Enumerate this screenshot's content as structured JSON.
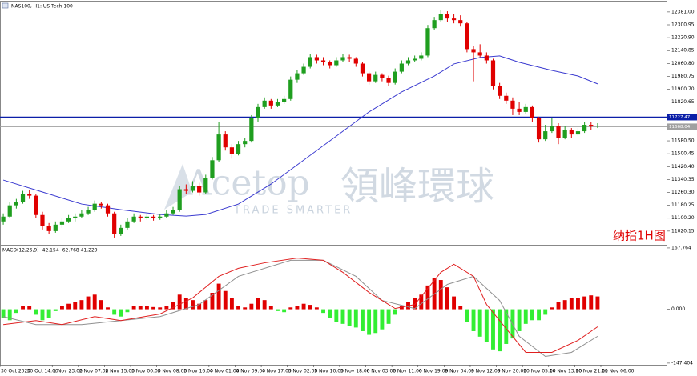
{
  "chart_data": [
    {
      "type": "candlestick",
      "title": "NAS100, H1: US Tech 100",
      "annotations": [
        "Acetop",
        "領峰環球",
        "TRADE SMARTER",
        "纳指1H图"
      ],
      "up_color": "#1f9e1f",
      "down_color": "#e00000",
      "ylim": [
        10935,
        12445
      ],
      "yticks": [
        {
          "value": 12381,
          "label": "12381.00"
        },
        {
          "value": 12300.95,
          "label": "12300.95"
        },
        {
          "value": 12220.9,
          "label": "12220.90"
        },
        {
          "value": 12140.85,
          "label": "12140.85"
        },
        {
          "value": 12060.8,
          "label": "12060.80"
        },
        {
          "value": 11980.75,
          "label": "11980.75"
        },
        {
          "value": 11900.7,
          "label": "11900.70"
        },
        {
          "value": 11820.65,
          "label": "11820.65"
        },
        {
          "value": 11580.5,
          "label": "11580.50"
        },
        {
          "value": 11500.45,
          "label": "11500.45"
        },
        {
          "value": 11420.4,
          "label": "11420.40"
        },
        {
          "value": 11340.35,
          "label": "11340.35"
        },
        {
          "value": 11260.3,
          "label": "11260.30"
        },
        {
          "value": 11180.25,
          "label": "11180.25"
        },
        {
          "value": 11100.2,
          "label": "11100.20"
        },
        {
          "value": 11020.15,
          "label": "11020.15"
        }
      ],
      "xticks": [
        {
          "value": 0,
          "label": "30 Oct 2020"
        },
        {
          "value": 4,
          "label": "30 Oct 14:00"
        },
        {
          "value": 8,
          "label": "1 Nov 23:00"
        },
        {
          "value": 12,
          "label": "2 Nov 07:00"
        },
        {
          "value": 16,
          "label": "2 Nov 15:00"
        },
        {
          "value": 20,
          "label": "3 Nov 00:00"
        },
        {
          "value": 24,
          "label": "3 Nov 08:00"
        },
        {
          "value": 28,
          "label": "3 Nov 16:00"
        },
        {
          "value": 32,
          "label": "4 Nov 01:00"
        },
        {
          "value": 36,
          "label": "4 Nov 09:00"
        },
        {
          "value": 40,
          "label": "4 Nov 17:00"
        },
        {
          "value": 44,
          "label": "5 Nov 02:00"
        },
        {
          "value": 48,
          "label": "5 Nov 10:00"
        },
        {
          "value": 52,
          "label": "5 Nov 18:00"
        },
        {
          "value": 56,
          "label": "6 Nov 03:00"
        },
        {
          "value": 60,
          "label": "6 Nov 11:00"
        },
        {
          "value": 64,
          "label": "6 Nov 19:00"
        },
        {
          "value": 68,
          "label": "9 Nov 04:00"
        },
        {
          "value": 72,
          "label": "9 Nov 12:00"
        },
        {
          "value": 76,
          "label": "9 Nov 20:00"
        },
        {
          "value": 80,
          "label": "10 Nov 05:00"
        },
        {
          "value": 84,
          "label": "10 Nov 13:00"
        },
        {
          "value": 88,
          "label": "10 Nov 21:00"
        },
        {
          "value": 92,
          "label": "11 Nov 06:00"
        }
      ],
      "hlines": [
        {
          "value": 11727.47,
          "color": "#0b1fa8"
        },
        {
          "value": 11668.04,
          "color": "#a0a0a0"
        }
      ],
      "ma": {
        "color": "#3b3bd0",
        "x": [
          0,
          6,
          12,
          18,
          24,
          28,
          31,
          36,
          41,
          46,
          51,
          56,
          61,
          66,
          69,
          73,
          76,
          79,
          84,
          88,
          91
        ],
        "values": [
          11337,
          11263,
          11188,
          11153,
          11123,
          11113,
          11123,
          11188,
          11312,
          11461,
          11610,
          11760,
          11884,
          11983,
          12058,
          12098,
          12108,
          12068,
          12018,
          11983,
          11934
        ]
      },
      "candles": [
        [
          11080,
          11130,
          11060,
          11110
        ],
        [
          11110,
          11200,
          11100,
          11180
        ],
        [
          11180,
          11220,
          11160,
          11200
        ],
        [
          11200,
          11270,
          11190,
          11250
        ],
        [
          11250,
          11275,
          11220,
          11240
        ],
        [
          11240,
          11250,
          11100,
          11120
        ],
        [
          11120,
          11140,
          11030,
          11050
        ],
        [
          11050,
          11070,
          11000,
          11020
        ],
        [
          11020,
          11080,
          11010,
          11060
        ],
        [
          11060,
          11100,
          11040,
          11080
        ],
        [
          11080,
          11120,
          11070,
          11100
        ],
        [
          11100,
          11130,
          11080,
          11110
        ],
        [
          11110,
          11150,
          11100,
          11130
        ],
        [
          11130,
          11170,
          11120,
          11150
        ],
        [
          11150,
          11210,
          11140,
          11190
        ],
        [
          11190,
          11200,
          11160,
          11180
        ],
        [
          11180,
          11190,
          11110,
          11130
        ],
        [
          11130,
          11140,
          10980,
          11000
        ],
        [
          11000,
          11060,
          10990,
          11040
        ],
        [
          11040,
          11100,
          11030,
          11080
        ],
        [
          11080,
          11130,
          11070,
          11110
        ],
        [
          11110,
          11120,
          11080,
          11100
        ],
        [
          11100,
          11130,
          11090,
          11110
        ],
        [
          11110,
          11120,
          11085,
          11100
        ],
        [
          11100,
          11125,
          11090,
          11110
        ],
        [
          11110,
          11150,
          11100,
          11130
        ],
        [
          11130,
          11170,
          11120,
          11150
        ],
        [
          11150,
          11300,
          11140,
          11280
        ],
        [
          11280,
          11310,
          11250,
          11270
        ],
        [
          11270,
          11330,
          11260,
          11300
        ],
        [
          11300,
          11320,
          11240,
          11260
        ],
        [
          11260,
          11370,
          11250,
          11350
        ],
        [
          11350,
          11480,
          11340,
          11460
        ],
        [
          11460,
          11700,
          11450,
          11620
        ],
        [
          11620,
          11640,
          11520,
          11540
        ],
        [
          11540,
          11560,
          11470,
          11500
        ],
        [
          11500,
          11580,
          11490,
          11560
        ],
        [
          11560,
          11600,
          11540,
          11580
        ],
        [
          11580,
          11740,
          11570,
          11720
        ],
        [
          11720,
          11810,
          11700,
          11790
        ],
        [
          11790,
          11850,
          11780,
          11830
        ],
        [
          11830,
          11840,
          11780,
          11800
        ],
        [
          11800,
          11840,
          11790,
          11820
        ],
        [
          11820,
          11860,
          11810,
          11840
        ],
        [
          11840,
          11980,
          11830,
          11960
        ],
        [
          11960,
          12020,
          11940,
          12000
        ],
        [
          12000,
          12060,
          11990,
          12040
        ],
        [
          12040,
          12120,
          12030,
          12100
        ],
        [
          12100,
          12115,
          12060,
          12080
        ],
        [
          12080,
          12100,
          12050,
          12070
        ],
        [
          12070,
          12080,
          12030,
          12050
        ],
        [
          12050,
          12100,
          12040,
          12080
        ],
        [
          12080,
          12120,
          12070,
          12100
        ],
        [
          12100,
          12115,
          12070,
          12090
        ],
        [
          12090,
          12100,
          12040,
          12060
        ],
        [
          12060,
          12070,
          11980,
          12000
        ],
        [
          12000,
          12010,
          11930,
          11950
        ],
        [
          11950,
          12010,
          11940,
          11990
        ],
        [
          11990,
          12000,
          11950,
          11970
        ],
        [
          11970,
          11985,
          11920,
          11940
        ],
        [
          11940,
          12030,
          11930,
          12010
        ],
        [
          12010,
          12080,
          12000,
          12060
        ],
        [
          12060,
          12100,
          12050,
          12080
        ],
        [
          12080,
          12110,
          12070,
          12090
        ],
        [
          12090,
          12130,
          12080,
          12110
        ],
        [
          12110,
          12300,
          12100,
          12280
        ],
        [
          12280,
          12350,
          12270,
          12330
        ],
        [
          12330,
          12395,
          12320,
          12370
        ],
        [
          12370,
          12385,
          12320,
          12340
        ],
        [
          12340,
          12370,
          12310,
          12330
        ],
        [
          12330,
          12360,
          12290,
          12310
        ],
        [
          12310,
          12320,
          12130,
          12150
        ],
        [
          12150,
          12170,
          11950,
          12130
        ],
        [
          12130,
          12180,
          12100,
          12110
        ],
        [
          12110,
          12130,
          12060,
          12080
        ],
        [
          12080,
          12090,
          11900,
          11920
        ],
        [
          11920,
          11940,
          11840,
          11860
        ],
        [
          11860,
          11880,
          11810,
          11830
        ],
        [
          11830,
          11850,
          11740,
          11780
        ],
        [
          11780,
          11820,
          11740,
          11760
        ],
        [
          11760,
          11810,
          11750,
          11790
        ],
        [
          11790,
          11800,
          11700,
          11720
        ],
        [
          11720,
          11730,
          11570,
          11590
        ],
        [
          11590,
          11680,
          11580,
          11640
        ],
        [
          11640,
          11720,
          11630,
          11670
        ],
        [
          11670,
          11690,
          11560,
          11600
        ],
        [
          11600,
          11670,
          11590,
          11650
        ],
        [
          11650,
          11660,
          11600,
          11620
        ],
        [
          11620,
          11660,
          11610,
          11640
        ],
        [
          11640,
          11700,
          11630,
          11680
        ],
        [
          11680,
          11695,
          11650,
          11670
        ],
        [
          11670,
          11690,
          11660,
          11675
        ]
      ]
    },
    {
      "type": "macd",
      "title": "MACD(12,26,9) -42.154 -62.768 41.229",
      "up_color": "#e00000",
      "down_color": "#33ee33",
      "ylim": [
        -152,
        172
      ],
      "yticks": [
        167.764,
        {
          "value": 0,
          "label": "0.000"
        },
        -147.404
      ],
      "histogram": [
        -25,
        -30,
        -10,
        10,
        8,
        -15,
        -30,
        -25,
        -5,
        8,
        15,
        20,
        25,
        35,
        40,
        25,
        5,
        -15,
        -20,
        -8,
        8,
        10,
        8,
        6,
        5,
        8,
        20,
        40,
        30,
        25,
        15,
        25,
        45,
        70,
        50,
        30,
        10,
        5,
        15,
        30,
        25,
        10,
        -5,
        -8,
        5,
        10,
        15,
        12,
        5,
        -10,
        -25,
        -35,
        -40,
        -45,
        -50,
        -60,
        -70,
        -65,
        -55,
        -40,
        -15,
        10,
        20,
        30,
        40,
        65,
        85,
        80,
        60,
        35,
        10,
        -35,
        -60,
        -75,
        -90,
        -110,
        -115,
        -95,
        -80,
        -60,
        -40,
        -30,
        -30,
        -15,
        5,
        20,
        25,
        30,
        30,
        35,
        38,
        35
      ],
      "macd_line": {
        "color": "#e02020",
        "x": [
          0,
          5,
          9,
          14,
          18,
          24,
          29,
          33,
          36,
          40,
          45,
          49,
          52,
          56,
          60,
          63,
          67,
          69,
          72,
          74,
          77,
          80,
          84,
          88,
          91
        ],
        "values": [
          -42,
          -31,
          -42,
          -20,
          -31,
          -13,
          31,
          90,
          112,
          127,
          140,
          134,
          101,
          46,
          2,
          13,
          101,
          123,
          90,
          13,
          -53,
          -118,
          -118,
          -85,
          -48
        ]
      },
      "signal_line": {
        "color": "#909090",
        "x": [
          0,
          5,
          12,
          18,
          24,
          30,
          36,
          44,
          49,
          54,
          58,
          63,
          68,
          72,
          76,
          79,
          83,
          87,
          91
        ],
        "values": [
          -20,
          -42,
          -42,
          -31,
          -20,
          13,
          90,
          134,
          134,
          90,
          24,
          2,
          68,
          90,
          24,
          -74,
          -129,
          -118,
          -74
        ]
      }
    }
  ]
}
